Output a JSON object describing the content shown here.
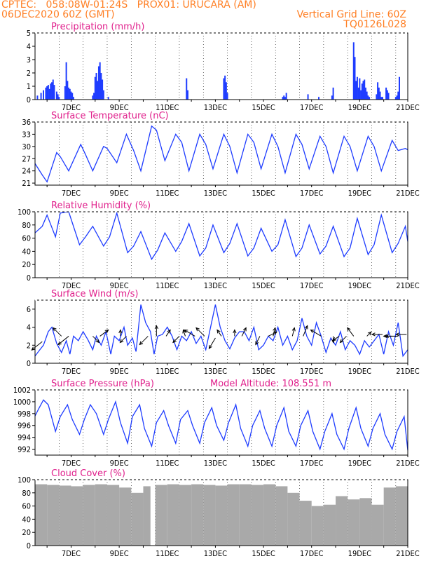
{
  "header": {
    "line1_left": "CPTEC:   058:08W-01:24S   PROX01: URUCARA (AM)",
    "line2_left": "06DEC2020 60Z (GMT)",
    "line2_right": "Vertical Grid Line: 60Z",
    "line3_right": "TQ0126L028"
  },
  "colors": {
    "header": "#ff7f24",
    "title": "#e0208c",
    "series": "#1e3cff",
    "cloud": "#a9a9a9"
  },
  "chart_data": [
    {
      "type": "bar",
      "title": "Precipitation (mm/h)",
      "x_unit": "days after 06DEC2020 00Z",
      "xticks": [
        "7DEC",
        "9DEC",
        "11DEC",
        "13DEC",
        "15DEC",
        "17DEC",
        "19DEC",
        "21DEC"
      ],
      "ylim": [
        0,
        5
      ],
      "yticks": [
        "0",
        "1",
        "2",
        "3",
        "4",
        "5"
      ],
      "x": [
        0.1,
        0.25,
        0.35,
        0.45,
        0.5,
        0.55,
        0.6,
        0.65,
        0.7,
        0.75,
        0.8,
        0.9,
        0.95,
        1.0,
        1.25,
        1.3,
        1.35,
        1.4,
        1.45,
        1.5,
        1.55,
        1.6,
        2.4,
        2.45,
        2.5,
        2.55,
        2.6,
        2.65,
        2.7,
        2.75,
        2.8,
        2.85,
        3.05,
        6.3,
        6.35,
        7.85,
        7.9,
        7.95,
        8.0,
        10.3,
        10.35,
        10.4,
        10.45,
        11.35,
        11.8,
        12.35,
        12.4,
        13.25,
        13.3,
        13.35,
        13.4,
        13.45,
        13.5,
        13.55,
        13.6,
        13.65,
        13.7,
        13.75,
        13.8,
        13.85,
        13.9,
        14.2,
        14.25,
        14.3,
        14.35,
        14.4,
        14.45,
        14.6,
        14.65,
        14.7,
        15.0,
        15.05,
        15.1,
        15.15
      ],
      "values": [
        0.3,
        0.5,
        0.7,
        0.9,
        1.0,
        1.1,
        0.8,
        1.2,
        1.3,
        1.5,
        1.1,
        0.6,
        0.4,
        0.2,
        1.0,
        2.8,
        1.4,
        0.9,
        0.8,
        0.6,
        0.5,
        0.2,
        0.3,
        0.5,
        1.7,
        2.0,
        1.4,
        2.5,
        2.8,
        2.0,
        1.5,
        0.7,
        0.2,
        1.6,
        0.7,
        1.6,
        1.8,
        1.3,
        0.5,
        0.2,
        0.3,
        0.2,
        0.5,
        0.4,
        0.2,
        0.3,
        0.9,
        4.3,
        3.2,
        1.4,
        1.7,
        0.9,
        1.6,
        0.7,
        1.2,
        1.4,
        1.5,
        0.9,
        0.6,
        0.3,
        0.2,
        0.4,
        1.3,
        0.9,
        0.6,
        0.2,
        0.2,
        0.9,
        0.7,
        0.5,
        0.2,
        0.3,
        0.6,
        1.7
      ]
    },
    {
      "type": "line",
      "title": "Surface Temperature (nC)",
      "x_unit": "days after 06DEC2020 00Z",
      "xticks": [
        "7DEC",
        "9DEC",
        "11DEC",
        "13DEC",
        "15DEC",
        "17DEC",
        "19DEC",
        "21DEC"
      ],
      "ylim": [
        20.5,
        36
      ],
      "yticks": [
        "21",
        "24",
        "27",
        "30",
        "33",
        "36"
      ],
      "x": [
        0.0,
        0.3,
        0.5,
        0.9,
        1.05,
        1.4,
        1.9,
        2.1,
        2.4,
        2.85,
        3.0,
        3.4,
        3.8,
        4.1,
        4.4,
        4.85,
        5.05,
        5.4,
        5.85,
        6.1,
        6.4,
        6.85,
        7.1,
        7.4,
        7.85,
        8.1,
        8.4,
        8.85,
        9.1,
        9.4,
        9.85,
        10.1,
        10.4,
        10.85,
        11.1,
        11.4,
        11.85,
        12.1,
        12.4,
        12.85,
        13.1,
        13.4,
        13.85,
        14.1,
        14.4,
        14.85,
        15.1,
        15.4,
        15.5
      ],
      "values": [
        25.8,
        23.0,
        21.3,
        28.5,
        27.5,
        24.0,
        30.5,
        28.0,
        24.0,
        30.0,
        29.5,
        26.0,
        33.0,
        29.0,
        24.0,
        35.0,
        34.0,
        26.5,
        33.0,
        31.0,
        24.0,
        33.0,
        30.5,
        24.5,
        33.0,
        30.0,
        23.5,
        33.0,
        31.0,
        24.5,
        33.0,
        30.0,
        23.5,
        33.0,
        30.5,
        24.5,
        32.5,
        30.0,
        23.5,
        32.5,
        30.0,
        24.0,
        32.5,
        30.0,
        24.0,
        31.5,
        29.0,
        29.5,
        29.2
      ],
      "series_color": "#1e3cff"
    },
    {
      "type": "line",
      "title": "Relative Humidity (%)",
      "x_unit": "days after 06DEC2020 00Z",
      "xticks": [
        "7DEC",
        "9DEC",
        "11DEC",
        "13DEC",
        "15DEC",
        "17DEC",
        "19DEC",
        "21DEC"
      ],
      "ylim": [
        0,
        100
      ],
      "yticks": [
        "0",
        "20",
        "40",
        "60",
        "80",
        "100"
      ],
      "x": [
        0.0,
        0.3,
        0.5,
        0.85,
        1.05,
        1.4,
        1.85,
        2.1,
        2.4,
        2.85,
        3.1,
        3.4,
        3.85,
        4.1,
        4.4,
        4.85,
        5.1,
        5.4,
        5.85,
        6.1,
        6.4,
        6.85,
        7.1,
        7.4,
        7.85,
        8.1,
        8.4,
        8.85,
        9.1,
        9.4,
        9.85,
        10.1,
        10.4,
        10.85,
        11.1,
        11.4,
        11.85,
        12.1,
        12.4,
        12.85,
        13.1,
        13.4,
        13.85,
        14.1,
        14.4,
        14.85,
        15.1,
        15.4,
        15.5
      ],
      "values": [
        68,
        78,
        95,
        62,
        98,
        100,
        50,
        62,
        78,
        48,
        62,
        98,
        38,
        48,
        70,
        28,
        42,
        68,
        40,
        55,
        82,
        33,
        45,
        80,
        38,
        52,
        82,
        33,
        45,
        75,
        40,
        50,
        88,
        32,
        45,
        80,
        36,
        48,
        78,
        32,
        45,
        90,
        35,
        50,
        95,
        38,
        52,
        78,
        55
      ],
      "series_color": "#1e3cff"
    },
    {
      "type": "line",
      "title": "Surface Wind (m/s)",
      "x_unit": "days after 06DEC2020 00Z",
      "xticks": [
        "7DEC",
        "9DEC",
        "11DEC",
        "13DEC",
        "15DEC",
        "17DEC",
        "19DEC",
        "21DEC"
      ],
      "ylim": [
        0,
        7
      ],
      "yticks": [
        "0",
        "2",
        "4",
        "6"
      ],
      "x": [
        0.0,
        0.2,
        0.35,
        0.55,
        0.7,
        0.9,
        1.1,
        1.3,
        1.45,
        1.6,
        1.8,
        2.0,
        2.2,
        2.4,
        2.55,
        2.75,
        2.95,
        3.15,
        3.3,
        3.5,
        3.7,
        3.85,
        4.05,
        4.2,
        4.4,
        4.6,
        4.8,
        4.95,
        5.1,
        5.3,
        5.5,
        5.7,
        5.9,
        6.1,
        6.3,
        6.5,
        6.7,
        6.9,
        7.1,
        7.3,
        7.5,
        7.7,
        7.9,
        8.1,
        8.3,
        8.5,
        8.7,
        8.9,
        9.1,
        9.3,
        9.5,
        9.7,
        9.9,
        10.1,
        10.3,
        10.5,
        10.7,
        10.9,
        11.1,
        11.3,
        11.5,
        11.7,
        11.9,
        12.1,
        12.3,
        12.5,
        12.7,
        12.9,
        13.1,
        13.3,
        13.5,
        13.7,
        13.9,
        14.1,
        14.3,
        14.5,
        14.7,
        14.9,
        15.1,
        15.3,
        15.5
      ],
      "values": [
        0.8,
        1.5,
        2.0,
        3.5,
        4.0,
        2.2,
        1.2,
        2.5,
        1.0,
        3.0,
        2.5,
        3.5,
        2.6,
        1.5,
        3.0,
        2.0,
        3.5,
        1.0,
        3.0,
        2.5,
        4.0,
        2.0,
        2.8,
        1.3,
        6.5,
        4.5,
        3.5,
        1.0,
        3.0,
        3.2,
        4.0,
        3.0,
        1.5,
        3.0,
        2.5,
        3.5,
        2.2,
        3.0,
        1.5,
        4.0,
        6.5,
        4.0,
        2.5,
        1.6,
        2.8,
        3.5,
        3.5,
        2.5,
        4.0,
        1.5,
        2.0,
        3.0,
        2.5,
        4.0,
        2.0,
        3.0,
        1.5,
        2.5,
        5.0,
        3.0,
        2.0,
        4.5,
        3.0,
        1.2,
        2.8,
        2.0,
        3.5,
        1.5,
        2.5,
        2.0,
        1.0,
        2.5,
        1.8,
        2.5,
        3.2,
        1.0,
        3.5,
        2.0,
        4.5,
        0.8,
        1.5
      ],
      "arrows_x": [
        0.3,
        1.1,
        1.4,
        2.4,
        2.7,
        3.55,
        3.8,
        4.7,
        5.05,
        5.45,
        6.0,
        6.25,
        6.65,
        7.05,
        7.5,
        7.75,
        8.3,
        8.6,
        9.35,
        9.7,
        9.9,
        10.7,
        11.15,
        11.9,
        12.4,
        12.65,
        12.95,
        13.25,
        13.8,
        14.45,
        14.85,
        15.1,
        15.45
      ],
      "arrows_y": [
        2.4,
        3.0,
        3.0,
        3.0,
        3.0,
        3.0,
        3.0,
        3.0,
        3.0,
        3.0,
        3.0,
        3.0,
        3.0,
        3.0,
        2.8,
        3.0,
        3.0,
        3.0,
        3.0,
        3.0,
        3.0,
        3.0,
        3.0,
        3.0,
        3.0,
        3.0,
        3.0,
        3.0,
        3.0,
        3.2,
        3.0,
        3.0,
        3.2
      ],
      "arrows_u": [
        -5,
        -4,
        -5,
        3,
        4,
        0,
        -3,
        -4,
        0,
        2,
        -3,
        -1,
        -5,
        -4,
        -3,
        -2,
        0,
        2,
        -2,
        4,
        1,
        1,
        2,
        -5,
        0,
        -3,
        -3,
        -3,
        2,
        -5,
        -4,
        -6,
        -5
      ],
      "arrows_v": [
        -4,
        4,
        -4,
        -3,
        3,
        3,
        -3,
        -4,
        5,
        3,
        -3,
        3,
        3,
        4,
        -5,
        3,
        3,
        4,
        -4,
        2,
        4,
        4,
        5,
        3,
        -3,
        -2,
        -3,
        4,
        2,
        0,
        0,
        0,
        0
      ],
      "series_color": "#1e3cff"
    },
    {
      "type": "line",
      "title": "Surface Pressure (hPa)",
      "subtitle": "Model Altitude: 108.551 m",
      "x_unit": "days after 06DEC2020 00Z",
      "xticks": [
        "7DEC",
        "9DEC",
        "11DEC",
        "13DEC",
        "15DEC",
        "17DEC",
        "19DEC",
        "21DEC"
      ],
      "ylim": [
        991,
        1002
      ],
      "yticks": [
        "992",
        "994",
        "996",
        "998",
        "1000",
        "1002"
      ],
      "x": [
        0.0,
        0.15,
        0.35,
        0.55,
        0.85,
        1.05,
        1.35,
        1.55,
        1.85,
        2.05,
        2.3,
        2.55,
        2.85,
        3.05,
        3.35,
        3.55,
        3.85,
        4.05,
        4.35,
        4.55,
        4.85,
        5.05,
        5.35,
        5.55,
        5.85,
        6.05,
        6.35,
        6.55,
        6.85,
        7.05,
        7.35,
        7.55,
        7.85,
        8.05,
        8.35,
        8.55,
        8.85,
        9.05,
        9.35,
        9.55,
        9.85,
        10.05,
        10.35,
        10.55,
        10.85,
        11.05,
        11.35,
        11.55,
        11.85,
        12.05,
        12.35,
        12.55,
        12.85,
        13.05,
        13.35,
        13.55,
        13.85,
        14.05,
        14.35,
        14.55,
        14.85,
        15.05,
        15.35,
        15.5
      ],
      "values": [
        997.6,
        998.8,
        1000.3,
        999.5,
        995.0,
        997.5,
        999.5,
        997.0,
        994.5,
        997.0,
        999.5,
        998.0,
        994.5,
        997.0,
        1000.0,
        996.5,
        993.0,
        997.5,
        999.5,
        995.5,
        992.5,
        996.5,
        998.5,
        996.0,
        993.0,
        997.0,
        998.5,
        996.0,
        993.0,
        996.5,
        999.0,
        996.0,
        993.5,
        996.5,
        999.5,
        995.5,
        992.5,
        996.0,
        998.5,
        995.5,
        992.5,
        996.0,
        999.0,
        995.0,
        992.5,
        996.0,
        998.5,
        995.0,
        992.0,
        995.0,
        998.0,
        994.5,
        992.0,
        995.5,
        999.0,
        995.5,
        992.5,
        995.5,
        998.0,
        994.5,
        992.0,
        995.0,
        997.5,
        991.8
      ],
      "series_color": "#1e3cff"
    },
    {
      "type": "bar",
      "title": "Cloud Cover (%)",
      "x_unit": "days after 06DEC2020 00Z",
      "xticks": [
        "7DEC",
        "9DEC",
        "11DEC",
        "13DEC",
        "15DEC",
        "17DEC",
        "19DEC",
        "21DEC"
      ],
      "ylim": [
        0,
        100
      ],
      "yticks": [
        "0",
        "20",
        "40",
        "60",
        "80",
        "100"
      ],
      "x": [
        0.0,
        0.5,
        1.0,
        1.5,
        2.0,
        2.5,
        3.0,
        3.5,
        4.0,
        4.5,
        4.8,
        5.0,
        5.5,
        6.0,
        6.5,
        7.0,
        7.5,
        8.0,
        8.5,
        9.0,
        9.5,
        10.0,
        10.5,
        11.0,
        11.5,
        12.0,
        12.5,
        13.0,
        13.5,
        14.0,
        14.5,
        15.0
      ],
      "values": [
        93,
        92,
        91,
        90,
        92,
        93,
        92,
        88,
        80,
        90,
        0,
        92,
        93,
        92,
        93,
        92,
        91,
        93,
        93,
        92,
        93,
        90,
        80,
        68,
        60,
        62,
        75,
        70,
        72,
        62,
        88,
        90
      ],
      "series_color": "#a9a9a9"
    }
  ]
}
